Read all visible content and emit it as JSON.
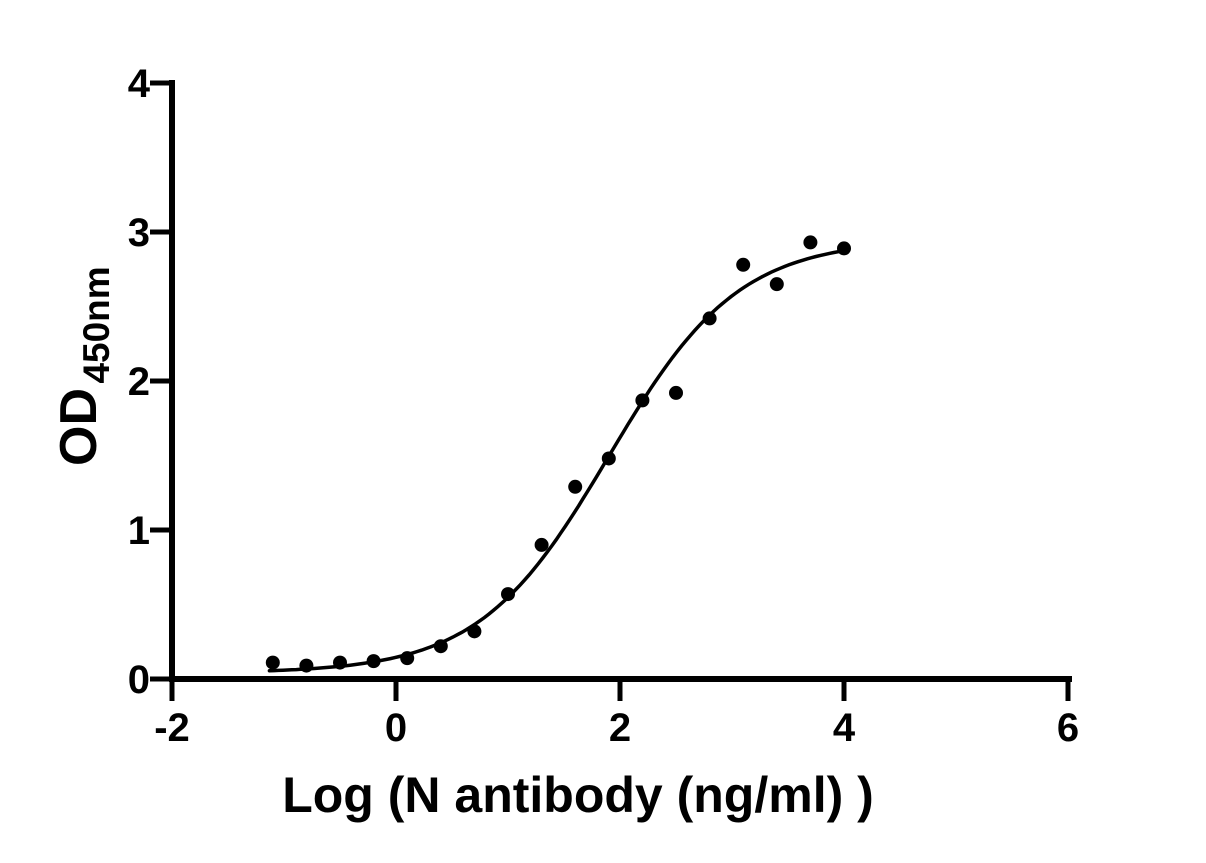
{
  "figure": {
    "background_color": "#ffffff",
    "ink_color": "#000000"
  },
  "chart_data": {
    "type": "scatter",
    "title": "",
    "xlabel": "Log (N antibody (ng/ml) )",
    "ylabel_main": "OD",
    "ylabel_subscript": "450nm",
    "xlim": [
      -2,
      6
    ],
    "ylim": [
      0,
      4
    ],
    "x_ticks": [
      -2,
      0,
      2,
      4,
      6
    ],
    "y_ticks": [
      0,
      1,
      2,
      3,
      4
    ],
    "grid": false,
    "legend": "none",
    "points": {
      "x": [
        -1.1,
        -0.8,
        -0.5,
        -0.2,
        0.1,
        0.4,
        0.7,
        1.0,
        1.3,
        1.6,
        1.9,
        2.2,
        2.5,
        2.8,
        3.1,
        3.4,
        3.7,
        4.0
      ],
      "y": [
        0.11,
        0.09,
        0.11,
        0.12,
        0.14,
        0.22,
        0.32,
        0.57,
        0.9,
        1.29,
        1.48,
        1.87,
        1.92,
        2.42,
        2.78,
        2.65,
        2.93,
        2.89
      ]
    },
    "fit_curve": {
      "model": "four-parameter-logistic",
      "bottom": 0.04,
      "top": 2.95,
      "log_ec50": 1.9,
      "hill_slope": 0.75,
      "x_start": -1.13,
      "x_end": 4.03
    },
    "marker": {
      "shape": "filled-circle",
      "color": "#000000",
      "radius_px": 7
    },
    "curve_color": "#000000",
    "axis_color": "#000000"
  }
}
